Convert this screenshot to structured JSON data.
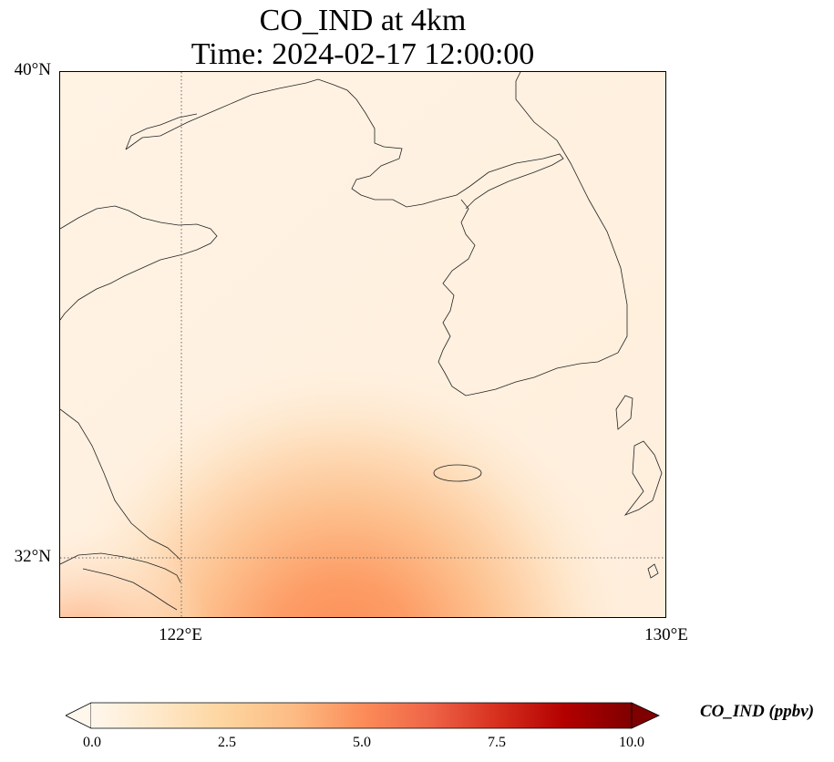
{
  "title": {
    "line1": "CO_IND at 4km",
    "line2": "Time: 2024-02-17 12:00:00"
  },
  "map": {
    "lat_range": [
      31,
      40
    ],
    "lon_range": [
      120,
      130
    ],
    "lat_ticks": [
      {
        "value": 40,
        "label": "40°N"
      },
      {
        "value": 32,
        "label": "32°N"
      }
    ],
    "lon_ticks": [
      {
        "value": 122,
        "label": "122°E"
      },
      {
        "value": 130,
        "label": "130°E"
      }
    ],
    "gridlines": {
      "lat": [
        32
      ],
      "lon": [
        122
      ],
      "style": "dotted"
    },
    "field": "CO_IND",
    "description_colors": {
      "background": "#fff1e0",
      "plume_max": "#fd8d55"
    }
  },
  "colorbar": {
    "label": "CO_IND (ppbv)",
    "min": 0,
    "max": 10,
    "extend": "both",
    "colormap": "OrRd",
    "stops": [
      "#fff7ec",
      "#fee8c8",
      "#fdd49e",
      "#fdbb84",
      "#fc8d59",
      "#ef6548",
      "#d7301f",
      "#b30000",
      "#7f0000"
    ],
    "ticks": [
      {
        "value": 0,
        "label": "0.0"
      },
      {
        "value": 2.5,
        "label": "2.5"
      },
      {
        "value": 5,
        "label": "5.0"
      },
      {
        "value": 7.5,
        "label": "7.5"
      },
      {
        "value": 10,
        "label": "10.0"
      }
    ]
  }
}
